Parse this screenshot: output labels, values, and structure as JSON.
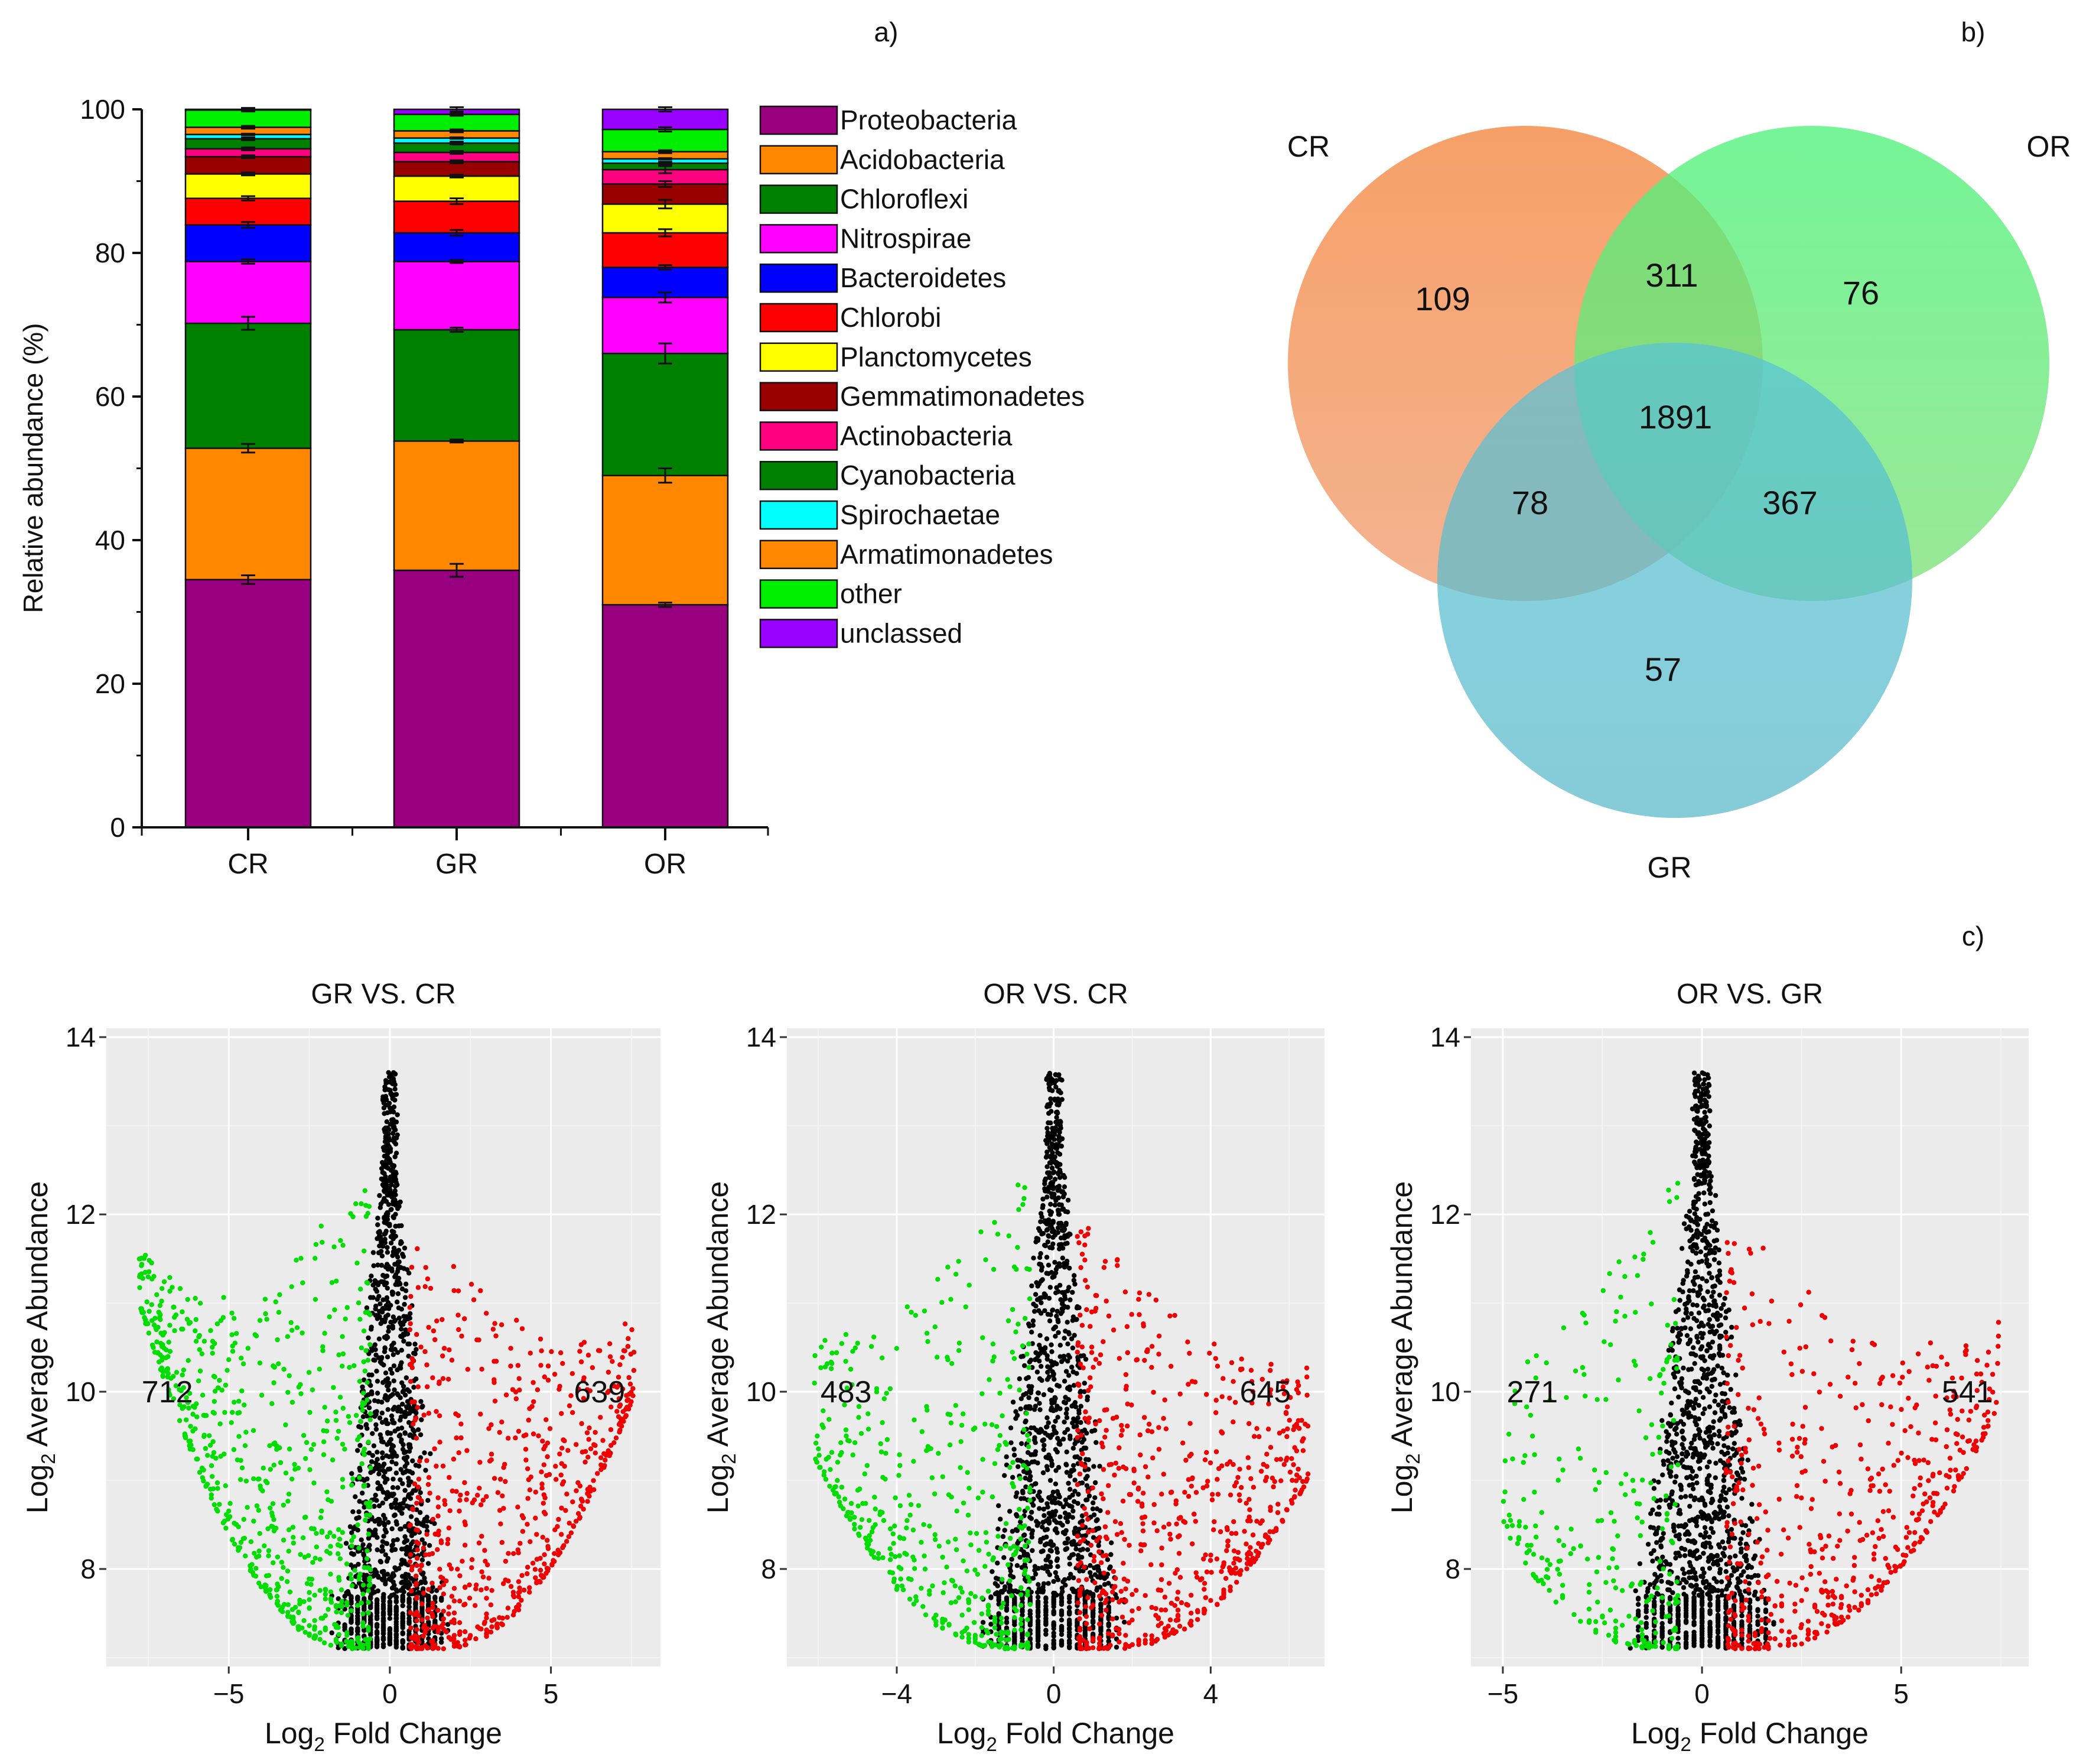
{
  "panel_labels": {
    "a": "a)",
    "b": "b)",
    "c": "c)"
  },
  "chart_data": [
    {
      "type": "bar",
      "stacked": true,
      "ylabel": "Relative abundance (%)",
      "ylim": [
        0,
        100
      ],
      "yticks": [
        0,
        20,
        40,
        60,
        80,
        100
      ],
      "categories": [
        "CR",
        "GR",
        "OR"
      ],
      "legend_position": "right",
      "series": [
        {
          "name": "Proteobacteria",
          "color": "#990080",
          "values": [
            34.5,
            35.8,
            31.0
          ],
          "errors": [
            0.6,
            0.9,
            0.3
          ]
        },
        {
          "name": "Acidobacteria",
          "color": "#ff8800",
          "values": [
            18.3,
            18.0,
            18.0
          ],
          "errors": [
            0.6,
            0.2,
            1.0
          ]
        },
        {
          "name": "Chloroflexi",
          "color": "#008000",
          "values": [
            17.4,
            15.5,
            17.0
          ],
          "errors": [
            0.9,
            0.3,
            1.4
          ]
        },
        {
          "name": "Nitrospirae",
          "color": "#ff00ff",
          "values": [
            8.6,
            9.5,
            7.8
          ],
          "errors": [
            0.3,
            0.2,
            0.7
          ]
        },
        {
          "name": "Bacteroidetes",
          "color": "#0000ff",
          "values": [
            5.1,
            4.0,
            4.2
          ],
          "errors": [
            0.4,
            0.4,
            0.3
          ]
        },
        {
          "name": "Chlorobi",
          "color": "#ff0000",
          "values": [
            3.7,
            4.4,
            4.8
          ],
          "errors": [
            0.3,
            0.4,
            0.5
          ]
        },
        {
          "name": "Planctomycetes",
          "color": "#ffff00",
          "values": [
            3.4,
            3.5,
            4.0
          ],
          "errors": [
            0.2,
            0.2,
            0.6
          ]
        },
        {
          "name": "Gemmatimonadetes",
          "color": "#990000",
          "values": [
            2.4,
            2.0,
            2.8
          ],
          "errors": [
            0.2,
            0.2,
            0.4
          ]
        },
        {
          "name": "Actinobacteria",
          "color": "#ff0080",
          "values": [
            1.1,
            1.3,
            2.0
          ],
          "errors": [
            0.2,
            0.2,
            0.5
          ]
        },
        {
          "name": "Cyanobacteria",
          "color": "#008000",
          "values": [
            1.4,
            1.3,
            0.9
          ],
          "errors": [
            0.2,
            0.2,
            0.2
          ]
        },
        {
          "name": "Spirochaetae",
          "color": "#00ffff",
          "values": [
            0.6,
            0.7,
            0.6
          ],
          "errors": [
            0.1,
            0.1,
            0.1
          ]
        },
        {
          "name": "Armatimonadetes",
          "color": "#ff8800",
          "values": [
            1.0,
            1.0,
            1.0
          ],
          "errors": [
            0.2,
            0.2,
            0.2
          ]
        },
        {
          "name": "other",
          "color": "#00ee00",
          "values": [
            2.4,
            2.3,
            3.1
          ],
          "errors": [
            0.2,
            0.2,
            0.3
          ]
        },
        {
          "name": "unclassed",
          "color": "#9900ff",
          "values": [
            0.1,
            0.7,
            2.8
          ],
          "errors": [
            0.2,
            0.3,
            0.3
          ]
        }
      ]
    },
    {
      "type": "venn",
      "sets": [
        {
          "name": "CR",
          "color": "#f5a36c"
        },
        {
          "name": "OR",
          "color": "#66ee77"
        },
        {
          "name": "GR",
          "color": "#5bbad0"
        }
      ],
      "regions": [
        {
          "sets": [
            "CR"
          ],
          "value": "109"
        },
        {
          "sets": [
            "OR"
          ],
          "value": "76"
        },
        {
          "sets": [
            "GR"
          ],
          "value": "57"
        },
        {
          "sets": [
            "CR",
            "OR"
          ],
          "value": "311"
        },
        {
          "sets": [
            "CR",
            "GR"
          ],
          "value": "78"
        },
        {
          "sets": [
            "OR",
            "GR"
          ],
          "value": "367"
        },
        {
          "sets": [
            "CR",
            "OR",
            "GR"
          ],
          "value": "1891"
        }
      ]
    },
    {
      "type": "scatter",
      "title": "GR VS. CR",
      "xlabel": "Log2 Fold Change",
      "ylabel": "Log2 Average Abundance",
      "xlim": [
        -8.8,
        8.4
      ],
      "ylim": [
        6.9,
        14.1
      ],
      "xticks": [
        -5,
        0,
        5
      ],
      "yticks": [
        8,
        10,
        12,
        14
      ],
      "down_count": "712",
      "up_count": "639",
      "colors": {
        "down": "#00dd00",
        "ns": "#000000",
        "up": "#ee0000"
      },
      "down_max_fc": -7.8,
      "up_max_fc": 7.6
    },
    {
      "type": "scatter",
      "title": "OR VS. CR",
      "xlabel": "Log2 Fold Change",
      "ylabel": "Log2 Average Abundance",
      "xlim": [
        -6.8,
        6.9
      ],
      "ylim": [
        6.9,
        14.1
      ],
      "xticks": [
        -4,
        0,
        4
      ],
      "yticks": [
        8,
        10,
        12,
        14
      ],
      "down_count": "483",
      "up_count": "645",
      "colors": {
        "down": "#00dd00",
        "ns": "#000000",
        "up": "#ee0000"
      },
      "down_max_fc": -6.1,
      "up_max_fc": 6.5
    },
    {
      "type": "scatter",
      "title": "OR VS. GR",
      "xlabel": "Log2 Fold Change",
      "ylabel": "Log2 Average Abundance",
      "xlim": [
        -5.8,
        8.2
      ],
      "ylim": [
        6.9,
        14.1
      ],
      "xticks": [
        -5,
        0,
        5
      ],
      "yticks": [
        8,
        10,
        12,
        14
      ],
      "down_count": "271",
      "up_count": "541",
      "colors": {
        "down": "#00dd00",
        "ns": "#000000",
        "up": "#ee0000"
      },
      "down_max_fc": -5.0,
      "up_max_fc": 7.5
    }
  ]
}
